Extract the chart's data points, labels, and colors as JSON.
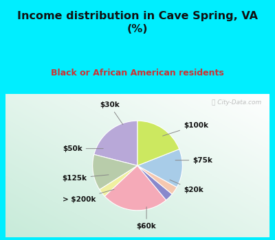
{
  "title": "Income distribution in Cave Spring, VA\n(%)",
  "subtitle": "Black or African American residents",
  "labels": [
    "$100k",
    "$75k",
    "$20k",
    "$60k",
    "> $200k",
    "$125k",
    "$50k",
    "$30k"
  ],
  "values": [
    21,
    13,
    3,
    24,
    3,
    3,
    14,
    19
  ],
  "colors": [
    "#b8a8d8",
    "#b8ccaa",
    "#f0f0a0",
    "#f5aab8",
    "#8888cc",
    "#f5c8b0",
    "#a8cce8",
    "#cce860"
  ],
  "bg_top": "#00eeff",
  "title_color": "#111111",
  "subtitle_color": "#cc3333",
  "watermark": "ⓘ City-Data.com",
  "label_color": "#111111",
  "label_fontsize": 7.5
}
